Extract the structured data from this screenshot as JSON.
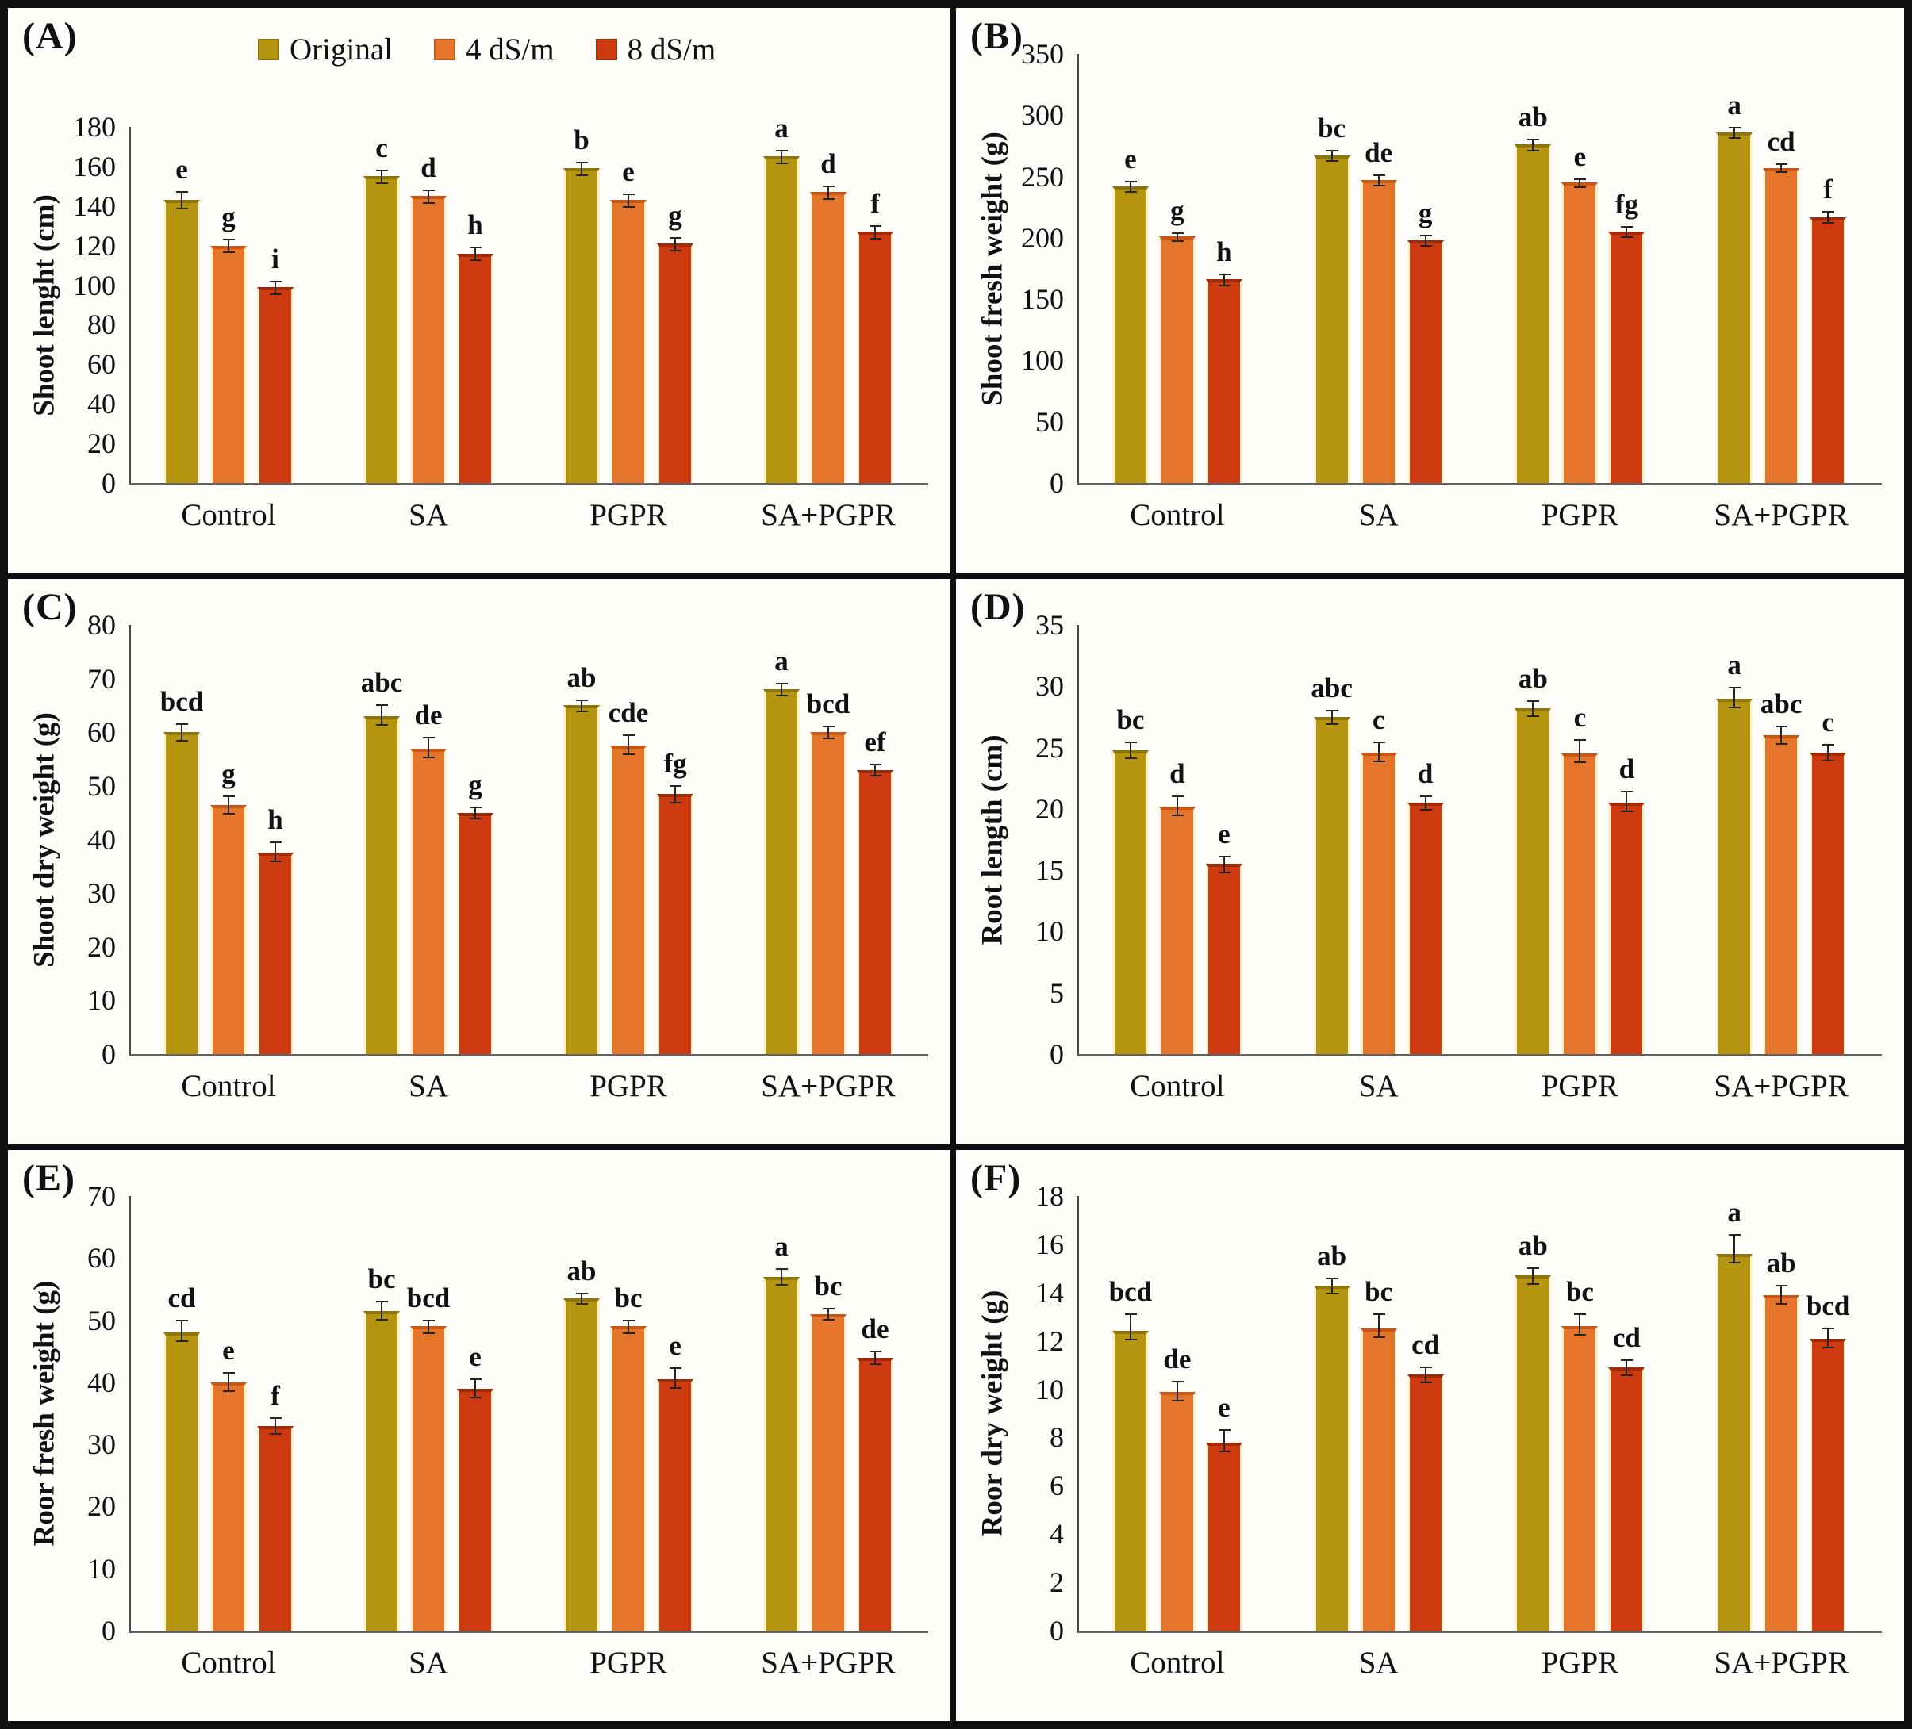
{
  "legend": {
    "items": [
      {
        "label": "Original",
        "color": "#b5950f",
        "edge": "#8e7509"
      },
      {
        "label": "4 dS/m",
        "color": "#e4752b",
        "edge": "#c85716"
      },
      {
        "label": "8 dS/m",
        "color": "#ce3a10",
        "edge": "#9f2b09"
      }
    ]
  },
  "colors": {
    "halo": "#fdf3d2",
    "axis": "#474747",
    "baseline": "#636363",
    "error": "#242424",
    "text": "#111111"
  },
  "chart_data": [
    {
      "panel_label": "(A)",
      "type": "bar",
      "ylabel": "Shoot lenght (cm)",
      "ylim": [
        0,
        180
      ],
      "ytick_step": 20,
      "show_legend": true,
      "categories": [
        "Control",
        "SA",
        "PGPR",
        "SA+PGPR"
      ],
      "series": [
        {
          "name": "Original",
          "values": [
            143,
            155,
            159,
            165
          ],
          "errors": [
            4,
            3,
            3,
            3
          ],
          "letters": [
            "e",
            "c",
            "b",
            "a"
          ]
        },
        {
          "name": "4 dS/m",
          "values": [
            120,
            145,
            143,
            147
          ],
          "errors": [
            3,
            3,
            3,
            3
          ],
          "letters": [
            "g",
            "d",
            "e",
            "d"
          ]
        },
        {
          "name": "8 dS/m",
          "values": [
            99,
            116,
            121,
            127
          ],
          "errors": [
            3,
            3,
            3,
            3
          ],
          "letters": [
            "i",
            "h",
            "g",
            "f"
          ]
        }
      ]
    },
    {
      "panel_label": "(B)",
      "type": "bar",
      "ylabel": "Shoot fresh weight (g)",
      "ylim": [
        0,
        350
      ],
      "ytick_step": 50,
      "show_legend": false,
      "categories": [
        "Control",
        "SA",
        "PGPR",
        "SA+PGPR"
      ],
      "series": [
        {
          "name": "Original",
          "values": [
            242,
            267,
            276,
            286
          ],
          "errors": [
            4,
            4,
            4,
            4
          ],
          "letters": [
            "e",
            "bc",
            "ab",
            "a"
          ]
        },
        {
          "name": "4 dS/m",
          "values": [
            201,
            247,
            245,
            257
          ],
          "errors": [
            3,
            4,
            3,
            3
          ],
          "letters": [
            "g",
            "de",
            "e",
            "cd"
          ]
        },
        {
          "name": "8 dS/m",
          "values": [
            166,
            198,
            205,
            217
          ],
          "errors": [
            4,
            4,
            4,
            4
          ],
          "letters": [
            "h",
            "g",
            "fg",
            "f"
          ]
        }
      ]
    },
    {
      "panel_label": "(C)",
      "type": "bar",
      "ylabel": "Shoot dry weight (g)",
      "ylim": [
        0,
        80
      ],
      "ytick_step": 10,
      "show_legend": false,
      "categories": [
        "Control",
        "SA",
        "PGPR",
        "SA+PGPR"
      ],
      "series": [
        {
          "name": "Original",
          "values": [
            60,
            63,
            65,
            68
          ],
          "errors": [
            1.5,
            2,
            1,
            1
          ],
          "letters": [
            "bcd",
            "abc",
            "ab",
            "a"
          ]
        },
        {
          "name": "4 dS/m",
          "values": [
            46.5,
            57,
            57.5,
            60
          ],
          "errors": [
            1.5,
            2,
            2,
            1
          ],
          "letters": [
            "g",
            "de",
            "cde",
            "bcd"
          ]
        },
        {
          "name": "8 dS/m",
          "values": [
            37.5,
            45,
            48.5,
            53
          ],
          "errors": [
            2,
            1,
            1.5,
            1
          ],
          "letters": [
            "h",
            "g",
            "fg",
            "ef"
          ]
        }
      ]
    },
    {
      "panel_label": "(D)",
      "type": "bar",
      "ylabel": "Root length (cm)",
      "ylim": [
        0,
        35
      ],
      "ytick_step": 5,
      "show_legend": false,
      "categories": [
        "Control",
        "SA",
        "PGPR",
        "SA+PGPR"
      ],
      "series": [
        {
          "name": "Original",
          "values": [
            24.8,
            27.5,
            28.2,
            29
          ],
          "errors": [
            0.6,
            0.5,
            0.6,
            0.9
          ],
          "letters": [
            "bc",
            "abc",
            "ab",
            "a"
          ]
        },
        {
          "name": "4 dS/m",
          "values": [
            20.2,
            24.6,
            24.5,
            26
          ],
          "errors": [
            0.8,
            0.8,
            1.1,
            0.7
          ],
          "letters": [
            "d",
            "c",
            "c",
            "abc"
          ]
        },
        {
          "name": "8 dS/m",
          "values": [
            15.5,
            20.5,
            20.5,
            24.6
          ],
          "errors": [
            0.6,
            0.5,
            0.9,
            0.6
          ],
          "letters": [
            "e",
            "d",
            "d",
            "c"
          ]
        }
      ]
    },
    {
      "panel_label": "(E)",
      "type": "bar",
      "ylabel": "Roor fresh weight (g)",
      "ylim": [
        0,
        70
      ],
      "ytick_step": 10,
      "show_legend": false,
      "categories": [
        "Control",
        "SA",
        "PGPR",
        "SA+PGPR"
      ],
      "series": [
        {
          "name": "Original",
          "values": [
            48,
            51.5,
            53.5,
            57
          ],
          "errors": [
            2,
            1.5,
            0.8,
            1.2
          ],
          "letters": [
            "cd",
            "bc",
            "ab",
            "a"
          ]
        },
        {
          "name": "4 dS/m",
          "values": [
            40,
            49,
            49,
            51
          ],
          "errors": [
            1.5,
            1,
            1,
            0.8
          ],
          "letters": [
            "e",
            "bcd",
            "bc",
            "bc"
          ]
        },
        {
          "name": "8 dS/m",
          "values": [
            33,
            39,
            40.5,
            44
          ],
          "errors": [
            1.2,
            1.5,
            1.8,
            1
          ],
          "letters": [
            "f",
            "e",
            "e",
            "de"
          ]
        }
      ]
    },
    {
      "panel_label": "(F)",
      "type": "bar",
      "ylabel": "Roor dry weight (g)",
      "ylim": [
        0,
        18
      ],
      "ytick_step": 2,
      "show_legend": false,
      "categories": [
        "Control",
        "SA",
        "PGPR",
        "SA+PGPR"
      ],
      "series": [
        {
          "name": "Original",
          "values": [
            12.4,
            14.3,
            14.7,
            15.6
          ],
          "errors": [
            0.7,
            0.3,
            0.3,
            0.8
          ],
          "letters": [
            "bcd",
            "ab",
            "ab",
            "a"
          ]
        },
        {
          "name": "4 dS/m",
          "values": [
            9.9,
            12.5,
            12.6,
            13.9
          ],
          "errors": [
            0.4,
            0.6,
            0.5,
            0.4
          ],
          "letters": [
            "de",
            "bc",
            "bc",
            "ab"
          ]
        },
        {
          "name": "8 dS/m",
          "values": [
            7.8,
            10.6,
            10.9,
            12.1
          ],
          "errors": [
            0.5,
            0.3,
            0.3,
            0.4
          ],
          "letters": [
            "e",
            "cd",
            "cd",
            "bcd"
          ]
        }
      ]
    }
  ]
}
